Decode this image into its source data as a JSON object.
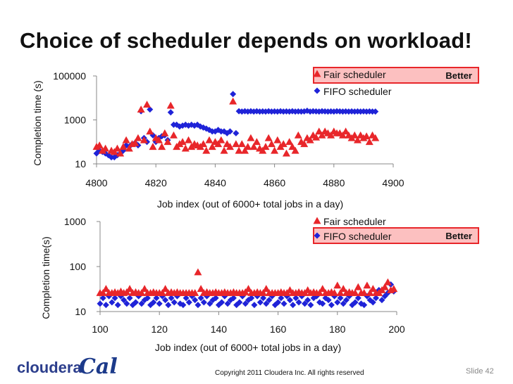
{
  "slide": {
    "title": "Choice of scheduler depends on workload!",
    "copyright": "Copyright 2011 Cloudera Inc. All rights reserved",
    "slide_number": "Slide 42",
    "logo_text": "cloudera",
    "cal_logo_text": "Cal"
  },
  "colors": {
    "fair": "#e8262a",
    "fifo": "#1f23d8",
    "highlight_fill": "#fcc0c0"
  },
  "chart_data": [
    {
      "type": "scatter",
      "title": "",
      "xlabel": "Job index (out of 6000+ total jobs in a day)",
      "ylabel": "Completion time (s)",
      "yscale": "log",
      "xlim": [
        4800,
        4900
      ],
      "ylim": [
        10,
        100000
      ],
      "xticks": [
        "4800",
        "4820",
        "4840",
        "4860",
        "4880",
        "4900"
      ],
      "yticks": [
        "10",
        "1000",
        "100000"
      ],
      "highlight": {
        "series": "Fair scheduler",
        "label": "Better"
      },
      "series": [
        {
          "name": "Fair scheduler",
          "marker": "triangle",
          "x": [
            4800,
            4801,
            4802,
            4803,
            4805,
            4806,
            4807,
            4808,
            4809,
            4810,
            4811,
            4812,
            4813,
            4814,
            4815,
            4816,
            4817,
            4818,
            4819,
            4820,
            4821,
            4822,
            4823,
            4824,
            4825,
            4826,
            4827,
            4828,
            4829,
            4830,
            4831,
            4832,
            4833,
            4834,
            4835,
            4836,
            4837,
            4838,
            4839,
            4840,
            4841,
            4842,
            4843,
            4844,
            4845,
            4846,
            4847,
            4848,
            4849,
            4850,
            4851,
            4852,
            4853,
            4854,
            4855,
            4856,
            4857,
            4858,
            4859,
            4860,
            4861,
            4862,
            4863,
            4864,
            4865,
            4866,
            4867,
            4868,
            4869,
            4870,
            4871,
            4872,
            4873,
            4874,
            4875,
            4876,
            4877,
            4878,
            4879,
            4880,
            4881,
            4882,
            4883,
            4884,
            4885,
            4886,
            4887,
            4888,
            4889,
            4890,
            4891,
            4892,
            4893,
            4894
          ],
          "y": [
            60,
            70,
            40,
            50,
            40,
            35,
            50,
            30,
            60,
            120,
            50,
            80,
            90,
            150,
            3000,
            120,
            5000,
            300,
            60,
            150,
            120,
            60,
            250,
            100,
            4500,
            200,
            60,
            80,
            100,
            50,
            120,
            60,
            80,
            70,
            60,
            80,
            40,
            120,
            60,
            100,
            80,
            120,
            40,
            80,
            60,
            7000,
            80,
            40,
            80,
            40,
            60,
            150,
            60,
            100,
            50,
            40,
            60,
            150,
            80,
            40,
            120,
            60,
            80,
            30,
            100,
            60,
            40,
            200,
            100,
            80,
            150,
            120,
            200,
            160,
            300,
            200,
            300,
            250,
            200,
            300,
            250,
            250,
            200,
            300,
            200,
            150,
            200,
            120,
            200,
            150,
            180,
            100,
            200,
            150
          ]
        },
        {
          "name": "FIFO scheduler",
          "marker": "diamond",
          "x": [
            4800,
            4801,
            4802,
            4803,
            4804,
            4805,
            4806,
            4807,
            4808,
            4809,
            4810,
            4811,
            4812,
            4813,
            4814,
            4815,
            4816,
            4817,
            4818,
            4819,
            4820,
            4821,
            4822,
            4823,
            4824,
            4825,
            4826,
            4827,
            4828,
            4829,
            4830,
            4831,
            4832,
            4833,
            4834,
            4835,
            4836,
            4837,
            4838,
            4839,
            4840,
            4841,
            4842,
            4843,
            4844,
            4845,
            4846,
            4847,
            4848,
            4849,
            4850,
            4851,
            4852,
            4853,
            4854,
            4855,
            4856,
            4857,
            4858,
            4859,
            4860,
            4861,
            4862,
            4863,
            4864,
            4865,
            4866,
            4867,
            4868,
            4869,
            4870,
            4871,
            4872,
            4873,
            4874,
            4875,
            4876,
            4877,
            4878,
            4879,
            4880,
            4881,
            4882,
            4883,
            4884,
            4885,
            4886,
            4887,
            4888,
            4889,
            4890,
            4891,
            4892,
            4893,
            4894
          ],
          "y": [
            30,
            40,
            35,
            30,
            25,
            20,
            20,
            25,
            30,
            40,
            70,
            60,
            80,
            90,
            70,
            2500,
            150,
            100,
            3000,
            200,
            100,
            150,
            180,
            200,
            120,
            2200,
            600,
            600,
            500,
            550,
            600,
            550,
            600,
            550,
            600,
            500,
            450,
            400,
            350,
            300,
            300,
            350,
            300,
            300,
            250,
            300,
            15000,
            250,
            2500,
            2400,
            2500,
            2400,
            2500,
            2400,
            2500,
            2400,
            2450,
            2400,
            2500,
            2400,
            2450,
            2400,
            2500,
            2400,
            2450,
            2400,
            2500,
            2400,
            2450,
            2400,
            2450,
            2600,
            2400,
            2500,
            2450,
            2400,
            2500,
            2450,
            2400,
            2450,
            2400,
            2500,
            2450,
            2400,
            2450,
            2400,
            2450,
            2400,
            2450,
            2400,
            2450,
            2400,
            2450,
            2400,
            2400
          ]
        }
      ]
    },
    {
      "type": "scatter",
      "title": "",
      "xlabel": "Job index (out of 6000+ total jobs in a day)",
      "ylabel": "Completion time(s)",
      "yscale": "log",
      "xlim": [
        100,
        200
      ],
      "ylim": [
        10,
        1000
      ],
      "xticks": [
        "100",
        "120",
        "140",
        "160",
        "180",
        "200"
      ],
      "yticks": [
        "10",
        "100",
        "1000"
      ],
      "highlight": {
        "series": "FIFO scheduler",
        "label": "Better"
      },
      "series": [
        {
          "name": "Fair scheduler",
          "marker": "triangle",
          "x": [
            100,
            101,
            102,
            103,
            104,
            105,
            106,
            107,
            108,
            109,
            110,
            111,
            112,
            113,
            114,
            115,
            116,
            117,
            118,
            119,
            120,
            121,
            122,
            123,
            124,
            125,
            126,
            127,
            128,
            129,
            130,
            131,
            132,
            133,
            134,
            135,
            136,
            137,
            138,
            139,
            140,
            141,
            142,
            143,
            144,
            145,
            146,
            147,
            148,
            149,
            150,
            151,
            152,
            153,
            154,
            155,
            156,
            157,
            158,
            159,
            160,
            161,
            162,
            163,
            164,
            165,
            166,
            167,
            168,
            169,
            170,
            171,
            172,
            173,
            174,
            175,
            176,
            177,
            178,
            179,
            180,
            181,
            182,
            183,
            184,
            185,
            186,
            187,
            188,
            189,
            190,
            191,
            192,
            193,
            194,
            195,
            196,
            197,
            198,
            199
          ],
          "y": [
            26,
            26,
            32,
            26,
            26,
            27,
            26,
            28,
            26,
            27,
            32,
            26,
            27,
            26,
            26,
            32,
            26,
            26,
            27,
            26,
            26,
            26,
            32,
            26,
            27,
            26,
            27,
            26,
            26,
            26,
            26,
            26,
            26,
            75,
            32,
            26,
            27,
            26,
            26,
            27,
            26,
            26,
            27,
            26,
            26,
            27,
            26,
            26,
            26,
            27,
            32,
            26,
            26,
            27,
            26,
            26,
            32,
            26,
            26,
            26,
            26,
            27,
            26,
            26,
            30,
            26,
            26,
            27,
            26,
            26,
            30,
            26,
            27,
            26,
            26,
            32,
            26,
            26,
            27,
            26,
            38,
            26,
            32,
            26,
            27,
            26,
            26,
            35,
            26,
            26,
            38,
            26,
            32,
            26,
            26,
            30,
            35,
            45,
            30,
            32
          ]
        },
        {
          "name": "FIFO scheduler",
          "marker": "diamond",
          "x": [
            100,
            101,
            102,
            103,
            104,
            105,
            106,
            107,
            108,
            109,
            110,
            111,
            112,
            113,
            114,
            115,
            116,
            117,
            118,
            119,
            120,
            121,
            122,
            123,
            124,
            125,
            126,
            127,
            128,
            129,
            130,
            131,
            132,
            133,
            134,
            135,
            136,
            137,
            138,
            139,
            140,
            141,
            142,
            143,
            144,
            145,
            146,
            147,
            148,
            149,
            150,
            151,
            152,
            153,
            154,
            155,
            156,
            157,
            158,
            159,
            160,
            161,
            162,
            163,
            164,
            165,
            166,
            167,
            168,
            169,
            170,
            171,
            172,
            173,
            174,
            175,
            176,
            177,
            178,
            179,
            180,
            181,
            182,
            183,
            184,
            185,
            186,
            187,
            188,
            189,
            190,
            191,
            192,
            193,
            194,
            195,
            196,
            197,
            198,
            199
          ],
          "y": [
            15,
            20,
            14,
            22,
            16,
            20,
            14,
            22,
            18,
            15,
            20,
            14,
            16,
            22,
            15,
            18,
            20,
            14,
            16,
            20,
            15,
            22,
            18,
            14,
            20,
            16,
            22,
            15,
            14,
            20,
            16,
            22,
            18,
            14,
            20,
            16,
            22,
            15,
            18,
            20,
            14,
            16,
            22,
            15,
            18,
            20,
            14,
            16,
            22,
            15,
            18,
            20,
            14,
            22,
            16,
            20,
            15,
            18,
            22,
            14,
            16,
            20,
            15,
            22,
            18,
            14,
            20,
            16,
            22,
            15,
            18,
            14,
            20,
            22,
            16,
            15,
            20,
            18,
            14,
            22,
            16,
            20,
            15,
            18,
            22,
            14,
            16,
            20,
            15,
            14,
            22,
            18,
            16,
            20,
            30,
            18,
            22,
            26,
            40,
            28
          ]
        }
      ]
    }
  ]
}
